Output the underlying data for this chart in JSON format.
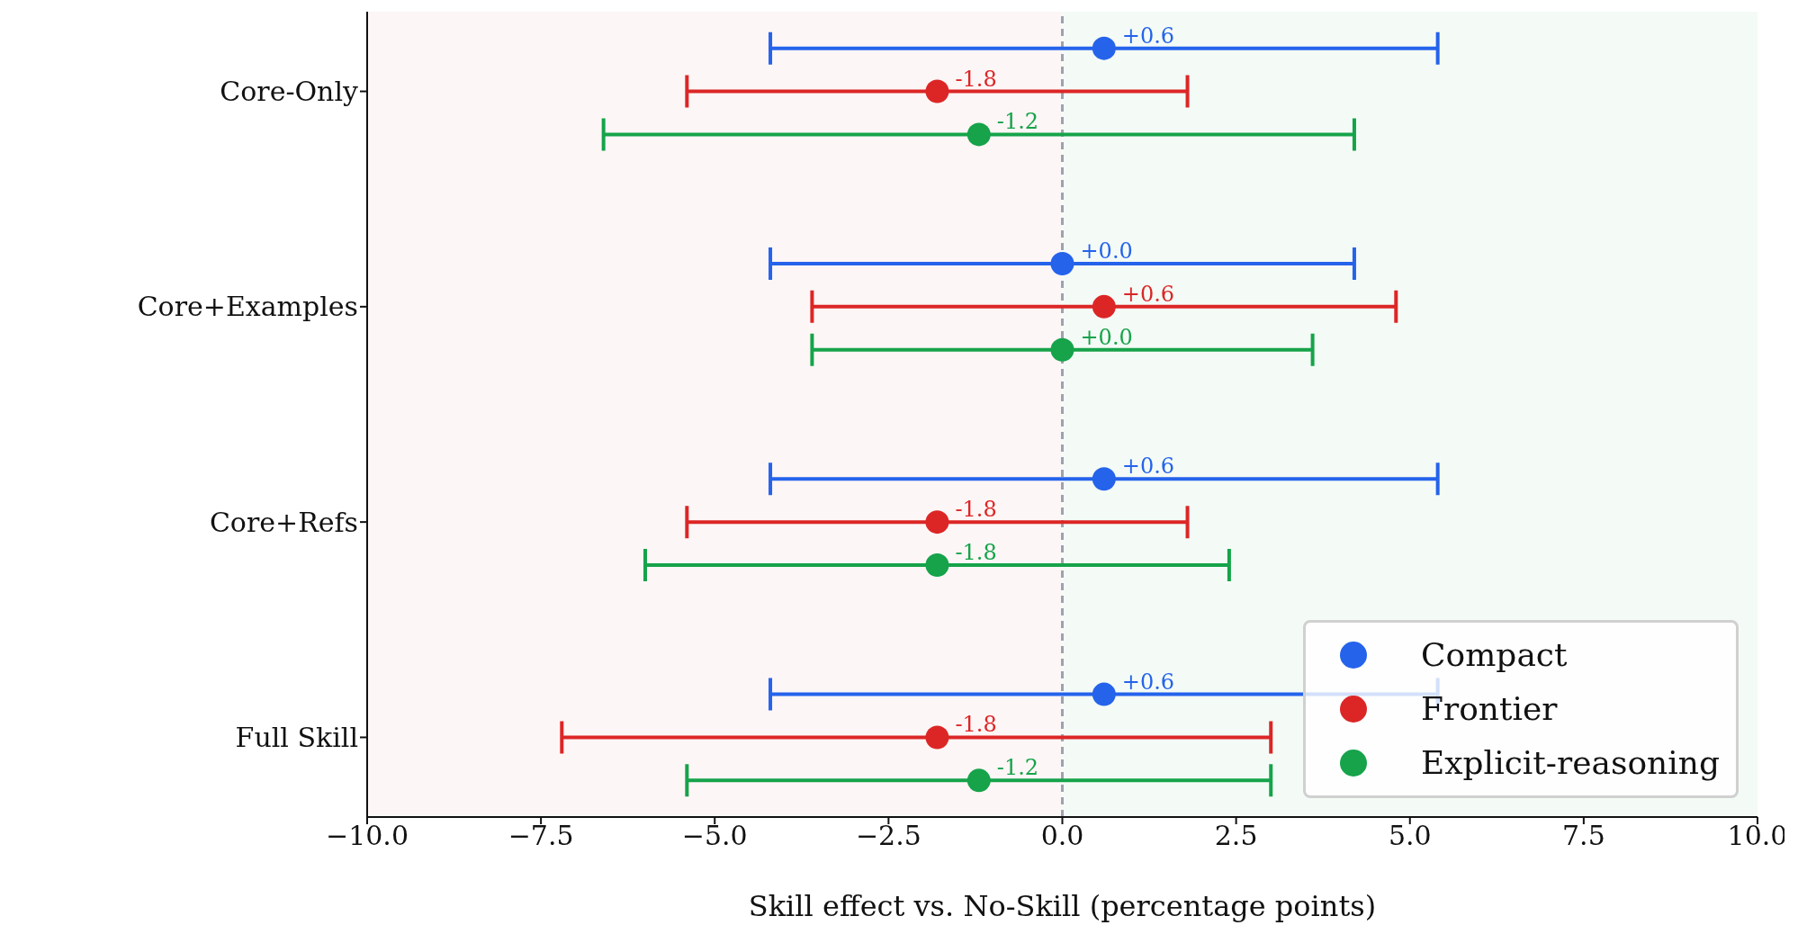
{
  "chart_data": {
    "type": "scatter",
    "orientation": "horizontal",
    "xlabel": "Skill effect vs. No-Skill (percentage points)",
    "categories": [
      "Core-Only",
      "Core+Examples",
      "Core+Refs",
      "Full Skill"
    ],
    "series": [
      {
        "name": "Compact",
        "color": "#2563eb",
        "values": [
          0.6,
          0.0,
          0.6,
          0.6
        ],
        "errors": [
          [
            -4.2,
            5.4
          ],
          [
            -4.2,
            4.2
          ],
          [
            -4.2,
            5.4
          ],
          [
            -4.2,
            5.4
          ]
        ],
        "value_labels": [
          "+0.6",
          "+0.0",
          "+0.6",
          "+0.6"
        ]
      },
      {
        "name": "Frontier",
        "color": "#dc2626",
        "values": [
          -1.8,
          0.6,
          -1.8,
          -1.8
        ],
        "errors": [
          [
            -5.4,
            1.8
          ],
          [
            -3.6,
            4.8
          ],
          [
            -5.4,
            1.8
          ],
          [
            -7.2,
            3.0
          ]
        ],
        "value_labels": [
          "-1.8",
          "+0.6",
          "-1.8",
          "-1.8"
        ]
      },
      {
        "name": "Explicit-reasoning",
        "color": "#16a34a",
        "values": [
          -1.2,
          0.0,
          -1.8,
          -1.2
        ],
        "errors": [
          [
            -6.6,
            4.2
          ],
          [
            -3.6,
            3.6
          ],
          [
            -6.0,
            2.4
          ],
          [
            -5.4,
            3.0
          ]
        ],
        "value_labels": [
          "-1.2",
          "+0.0",
          "-1.8",
          "-1.2"
        ]
      }
    ],
    "xlim": [
      -10,
      10
    ],
    "xticks": [
      {
        "value": -10,
        "label": "−10.0"
      },
      {
        "value": -7.5,
        "label": "−7.5"
      },
      {
        "value": -5,
        "label": "−5.0"
      },
      {
        "value": -2.5,
        "label": "−2.5"
      },
      {
        "value": 0,
        "label": "0.0"
      },
      {
        "value": 2.5,
        "label": "2.5"
      },
      {
        "value": 5,
        "label": "5.0"
      },
      {
        "value": 7.5,
        "label": "7.5"
      },
      {
        "value": 10,
        "label": "10.0"
      }
    ],
    "ref_lines": [
      {
        "axis": "x",
        "value": 0,
        "color": "#9ca3af",
        "line_style": "dashed"
      }
    ],
    "bands": [
      {
        "axis": "x",
        "from": -10,
        "to": 0,
        "color": "#fdf6f6"
      },
      {
        "axis": "x",
        "from": 0,
        "to": 10,
        "color": "#f4fbf6"
      }
    ],
    "marker": "circle",
    "grid": false,
    "legend": "bottom right"
  }
}
